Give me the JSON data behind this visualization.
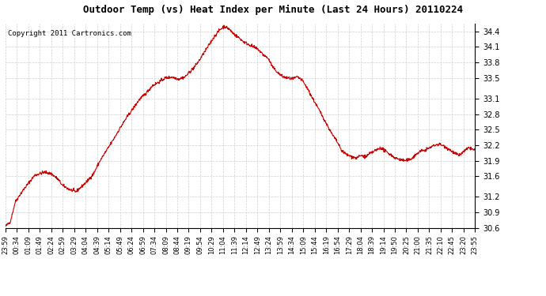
{
  "title": "Outdoor Temp (vs) Heat Index per Minute (Last 24 Hours) 20110224",
  "copyright": "Copyright 2011 Cartronics.com",
  "line_color": "#cc0000",
  "background_color": "#ffffff",
  "grid_color": "#cccccc",
  "ylim": [
    30.6,
    34.55
  ],
  "yticks": [
    30.6,
    30.9,
    31.2,
    31.6,
    31.9,
    32.2,
    32.5,
    32.8,
    33.1,
    33.5,
    33.8,
    34.1,
    34.4
  ],
  "xtick_labels": [
    "23:59",
    "00:34",
    "01:09",
    "01:49",
    "02:24",
    "02:59",
    "03:29",
    "04:04",
    "04:39",
    "05:14",
    "05:49",
    "06:24",
    "06:59",
    "07:34",
    "08:09",
    "08:44",
    "09:19",
    "09:54",
    "10:29",
    "11:04",
    "11:39",
    "12:14",
    "12:49",
    "13:24",
    "13:59",
    "14:34",
    "15:09",
    "15:44",
    "16:19",
    "16:54",
    "17:29",
    "18:04",
    "18:39",
    "19:14",
    "19:50",
    "20:25",
    "21:00",
    "21:35",
    "22:10",
    "22:45",
    "23:20",
    "23:55"
  ],
  "keypoints_x": [
    0,
    15,
    30,
    45,
    60,
    75,
    90,
    105,
    120,
    140,
    160,
    175,
    195,
    215,
    230,
    250,
    270,
    290,
    310,
    330,
    350,
    370,
    390,
    410,
    430,
    450,
    470,
    490,
    510,
    530,
    550,
    565,
    580,
    595,
    610,
    625,
    640,
    655,
    670,
    685,
    700,
    715,
    730,
    745,
    760,
    775,
    790,
    805,
    820,
    835,
    850,
    865,
    880,
    895,
    910,
    925,
    940,
    955,
    970,
    985,
    1000,
    1015,
    1030,
    1045,
    1060,
    1075,
    1090,
    1105,
    1120,
    1135,
    1150,
    1165,
    1180,
    1195,
    1210,
    1225,
    1240,
    1255,
    1270,
    1285,
    1300,
    1315,
    1330,
    1345,
    1360,
    1375,
    1390,
    1405,
    1420,
    1439
  ],
  "keypoints_y": [
    30.63,
    30.72,
    31.1,
    31.25,
    31.38,
    31.5,
    31.62,
    31.65,
    31.68,
    31.65,
    31.55,
    31.42,
    31.35,
    31.3,
    31.38,
    31.5,
    31.65,
    31.9,
    32.1,
    32.3,
    32.52,
    32.72,
    32.9,
    33.08,
    33.2,
    33.35,
    33.42,
    33.5,
    33.52,
    33.48,
    33.52,
    33.62,
    33.72,
    33.85,
    34.0,
    34.15,
    34.3,
    34.42,
    34.5,
    34.45,
    34.35,
    34.28,
    34.2,
    34.15,
    34.1,
    34.05,
    33.95,
    33.88,
    33.7,
    33.6,
    33.52,
    33.5,
    33.48,
    33.52,
    33.45,
    33.3,
    33.12,
    32.95,
    32.78,
    32.6,
    32.42,
    32.28,
    32.1,
    32.02,
    31.98,
    31.95,
    32.0,
    31.98,
    32.05,
    32.1,
    32.15,
    32.08,
    32.02,
    31.95,
    31.92,
    31.9,
    31.92,
    32.0,
    32.08,
    32.1,
    32.15,
    32.2,
    32.22,
    32.18,
    32.12,
    32.05,
    32.0,
    32.08,
    32.15,
    32.1
  ]
}
